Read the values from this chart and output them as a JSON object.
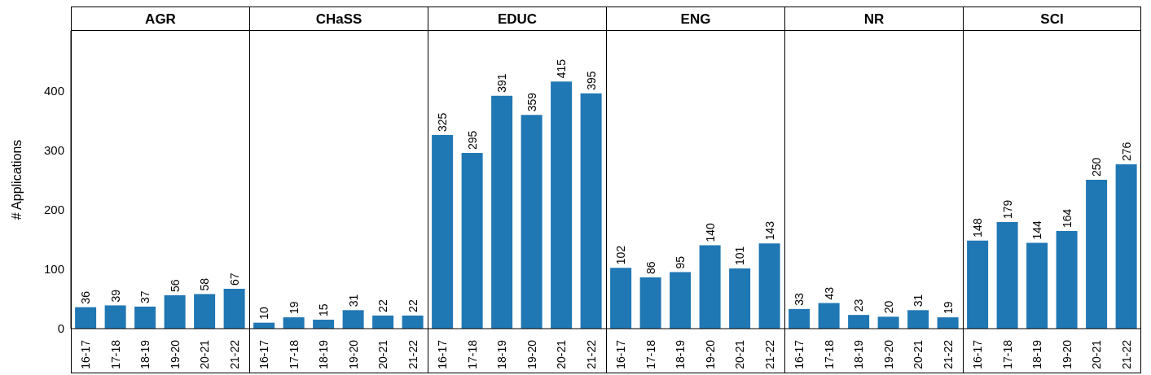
{
  "chart_data": [
    {
      "type": "bar",
      "title": "AGR",
      "ylabel": "# Applications",
      "categories": [
        "16-17",
        "17-18",
        "18-19",
        "19-20",
        "20-21",
        "21-22"
      ],
      "values": [
        36,
        39,
        37,
        56,
        58,
        67
      ],
      "color": "#1f77b4",
      "ylim": [
        0,
        500
      ],
      "yticks": [
        0,
        100,
        200,
        300,
        400
      ],
      "data_labels": true
    },
    {
      "type": "bar",
      "title": "CHaSS",
      "categories": [
        "16-17",
        "17-18",
        "18-19",
        "19-20",
        "20-21",
        "21-22"
      ],
      "values": [
        10,
        19,
        15,
        31,
        22,
        22
      ],
      "color": "#1f77b4",
      "ylim": [
        0,
        500
      ],
      "yticks": [
        0,
        100,
        200,
        300,
        400
      ],
      "data_labels": true,
      "tick_labels": "x"
    },
    {
      "type": "bar",
      "title": "EDUC",
      "categories": [
        "16-17",
        "17-18",
        "18-19",
        "19-20",
        "20-21",
        "21-22"
      ],
      "values": [
        325,
        295,
        391,
        359,
        415,
        395
      ],
      "color": "#1f77b4",
      "ylim": [
        0,
        500
      ],
      "yticks": [
        0,
        100,
        200,
        300,
        400
      ],
      "data_labels": true,
      "tick_labels": "x"
    },
    {
      "type": "bar",
      "title": "ENG",
      "categories": [
        "16-17",
        "17-18",
        "18-19",
        "19-20",
        "20-21",
        "21-22"
      ],
      "values": [
        102,
        86,
        95,
        140,
        101,
        143
      ],
      "color": "#1f77b4",
      "ylim": [
        0,
        500
      ],
      "yticks": [
        0,
        100,
        200,
        300,
        400
      ],
      "data_labels": true,
      "tick_labels": "x"
    },
    {
      "type": "bar",
      "title": "NR",
      "categories": [
        "16-17",
        "17-18",
        "18-19",
        "19-20",
        "20-21",
        "21-22"
      ],
      "values": [
        33,
        43,
        23,
        20,
        31,
        19
      ],
      "color": "#1f77b4",
      "ylim": [
        0,
        500
      ],
      "yticks": [
        0,
        100,
        200,
        300,
        400
      ],
      "data_labels": true,
      "tick_labels": "x"
    },
    {
      "type": "bar",
      "title": "SCI",
      "categories": [
        "16-17",
        "17-18",
        "18-19",
        "19-20",
        "20-21",
        "21-22"
      ],
      "values": [
        148,
        179,
        144,
        164,
        250,
        276
      ],
      "color": "#1f77b4",
      "ylim": [
        0,
        500
      ],
      "yticks": [
        0,
        100,
        200,
        300,
        400
      ],
      "data_labels": true,
      "tick_labels": "x"
    }
  ]
}
